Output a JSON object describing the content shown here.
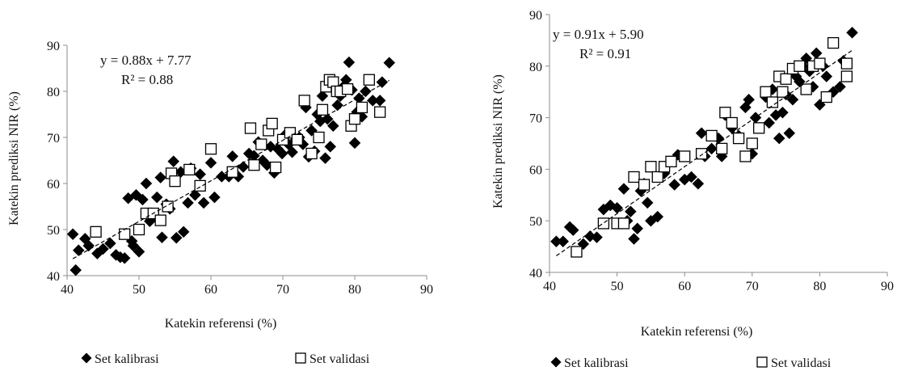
{
  "chart_data": [
    {
      "type": "scatter",
      "xlabel": "Katekin referensi (%)",
      "ylabel": "Katekin prediksi NIR (%)",
      "xlim": [
        40,
        90
      ],
      "ylim": [
        40,
        90
      ],
      "xticks": [
        40,
        50,
        60,
        70,
        80,
        90
      ],
      "yticks": [
        40,
        50,
        60,
        70,
        80,
        90
      ],
      "grid": false,
      "legend_position": "bottom",
      "annotation": {
        "equation": "y = 0.88x + 7.77",
        "r2": "R² = 0.88"
      },
      "trendline": {
        "slope": 0.88,
        "intercept": 7.77,
        "x_range": [
          40.8,
          84.8
        ]
      },
      "series": [
        {
          "name": "Set kalibrasi",
          "marker": "filled-diamond",
          "color": "#000000",
          "points": [
            [
              40.8,
              49
            ],
            [
              41.2,
              41.2
            ],
            [
              41.6,
              45.5
            ],
            [
              42.5,
              48
            ],
            [
              43,
              46.5
            ],
            [
              44.2,
              44.8
            ],
            [
              45,
              45.8
            ],
            [
              46,
              47
            ],
            [
              46.8,
              44.5
            ],
            [
              47.4,
              44
            ],
            [
              48,
              43.8
            ],
            [
              48.5,
              56.8
            ],
            [
              49,
              47.5
            ],
            [
              49.2,
              46.5
            ],
            [
              49.6,
              57.5
            ],
            [
              50,
              45.2
            ],
            [
              50.5,
              56.5
            ],
            [
              51,
              60
            ],
            [
              51.5,
              51.8
            ],
            [
              52,
              53
            ],
            [
              52.5,
              57
            ],
            [
              53,
              61.3
            ],
            [
              53.2,
              48.3
            ],
            [
              53.8,
              55.5
            ],
            [
              54.3,
              54.5
            ],
            [
              54.8,
              64.8
            ],
            [
              55.2,
              48.2
            ],
            [
              55.8,
              62.5
            ],
            [
              56.2,
              49.5
            ],
            [
              56.8,
              55.8
            ],
            [
              57.2,
              63.3
            ],
            [
              57.8,
              57.5
            ],
            [
              58.5,
              62
            ],
            [
              59,
              55.8
            ],
            [
              60,
              64.5
            ],
            [
              60.5,
              57
            ],
            [
              61.5,
              61.5
            ],
            [
              62.5,
              61.5
            ],
            [
              63,
              65.9
            ],
            [
              63.8,
              61.5
            ],
            [
              64.5,
              63.6
            ],
            [
              65.3,
              66.5
            ],
            [
              66,
              66
            ],
            [
              66.6,
              69
            ],
            [
              67.2,
              65
            ],
            [
              67.8,
              64
            ],
            [
              68.3,
              68
            ],
            [
              68.8,
              62.3
            ],
            [
              69.3,
              67.5
            ],
            [
              69.9,
              66.5
            ],
            [
              70.3,
              70.5
            ],
            [
              70.8,
              68.5
            ],
            [
              71.3,
              66.8
            ],
            [
              71.8,
              69.5
            ],
            [
              72.3,
              70
            ],
            [
              72.8,
              68.5
            ],
            [
              73.2,
              76.5
            ],
            [
              73.6,
              65.8
            ],
            [
              74,
              71.5
            ],
            [
              74.4,
              67
            ],
            [
              74.8,
              75
            ],
            [
              75.2,
              73.5
            ],
            [
              75.5,
              79
            ],
            [
              75.9,
              65.5
            ],
            [
              76.2,
              74
            ],
            [
              76.6,
              68
            ],
            [
              77,
              72.5
            ],
            [
              77.3,
              80
            ],
            [
              77.6,
              77
            ],
            [
              78,
              79
            ],
            [
              78.4,
              81
            ],
            [
              78.8,
              82.5
            ],
            [
              79.2,
              86.3
            ],
            [
              79.6,
              80.3
            ],
            [
              80,
              68.8
            ],
            [
              80.3,
              75.5
            ],
            [
              80.6,
              78.5
            ],
            [
              81,
              74.5
            ],
            [
              81.5,
              80
            ],
            [
              82.5,
              78
            ],
            [
              83.5,
              78
            ],
            [
              83.8,
              82
            ],
            [
              84.8,
              86.2
            ]
          ]
        },
        {
          "name": "Set validasi",
          "marker": "open-square",
          "color": "#000000",
          "points": [
            [
              44,
              49.5
            ],
            [
              48,
              49
            ],
            [
              50,
              50
            ],
            [
              51,
              53.5
            ],
            [
              52,
              53.5
            ],
            [
              53,
              52
            ],
            [
              54,
              55
            ],
            [
              54.5,
              62.2
            ],
            [
              55,
              60.5
            ],
            [
              57,
              63
            ],
            [
              58.5,
              59.5
            ],
            [
              60,
              67.5
            ],
            [
              63,
              62.5
            ],
            [
              65.5,
              72
            ],
            [
              66,
              64
            ],
            [
              67,
              68.5
            ],
            [
              68,
              71.5
            ],
            [
              68.5,
              73
            ],
            [
              69,
              63.5
            ],
            [
              70,
              69.5
            ],
            [
              71,
              71
            ],
            [
              72,
              69.5
            ],
            [
              73,
              78
            ],
            [
              74,
              66.5
            ],
            [
              75,
              70
            ],
            [
              75.5,
              76
            ],
            [
              76,
              81
            ],
            [
              76.5,
              82.5
            ],
            [
              77,
              82
            ],
            [
              77.5,
              80
            ],
            [
              78,
              80
            ],
            [
              79,
              80.5
            ],
            [
              79.5,
              72.5
            ],
            [
              80,
              74
            ],
            [
              81,
              76.5
            ],
            [
              82,
              82.5
            ],
            [
              83.5,
              75.5
            ]
          ]
        }
      ]
    },
    {
      "type": "scatter",
      "xlabel": "Katekin referensi (%)",
      "ylabel": "Katekin prediksi NIR (%)",
      "xlim": [
        40,
        90
      ],
      "ylim": [
        40,
        90
      ],
      "xticks": [
        40,
        50,
        60,
        70,
        80,
        90
      ],
      "yticks": [
        40,
        50,
        60,
        70,
        80,
        90
      ],
      "grid": false,
      "legend_position": "bottom",
      "annotation": {
        "equation": "y = 0.91x + 5.90",
        "r2": "R² = 0.91"
      },
      "trendline": {
        "slope": 0.91,
        "intercept": 5.9,
        "x_range": [
          41.0,
          84.8
        ]
      },
      "series": [
        {
          "name": "Set kalibrasi",
          "marker": "filled-diamond",
          "color": "#000000",
          "points": [
            [
              41,
              46
            ],
            [
              42,
              46
            ],
            [
              43,
              48.8
            ],
            [
              43.5,
              48.2
            ],
            [
              45,
              45.5
            ],
            [
              46,
              47
            ],
            [
              47,
              46.8
            ],
            [
              48,
              52.2
            ],
            [
              49,
              53
            ],
            [
              50,
              52.5
            ],
            [
              51,
              56.2
            ],
            [
              51.5,
              50
            ],
            [
              52,
              51.8
            ],
            [
              52.5,
              46.5
            ],
            [
              53,
              48.5
            ],
            [
              53.5,
              55.8
            ],
            [
              54,
              57.2
            ],
            [
              54.5,
              53.5
            ],
            [
              55,
              50
            ],
            [
              56,
              50.8
            ],
            [
              57,
              59.2
            ],
            [
              58,
              61.5
            ],
            [
              58.5,
              57
            ],
            [
              59,
              62.8
            ],
            [
              60,
              58
            ],
            [
              61,
              58.5
            ],
            [
              62,
              57.2
            ],
            [
              62.5,
              67
            ],
            [
              63,
              62.5
            ],
            [
              64,
              64
            ],
            [
              65,
              66
            ],
            [
              65.5,
              62.5
            ],
            [
              66,
              70.5
            ],
            [
              67,
              68
            ],
            [
              68,
              66.5
            ],
            [
              69,
              72
            ],
            [
              69.5,
              73.5
            ],
            [
              70,
              63
            ],
            [
              70.5,
              70
            ],
            [
              71,
              68
            ],
            [
              72,
              74
            ],
            [
              72.5,
              69
            ],
            [
              73,
              75.5
            ],
            [
              73.5,
              70.5
            ],
            [
              74,
              66
            ],
            [
              74.5,
              71
            ],
            [
              75,
              74.5
            ],
            [
              75.5,
              67
            ],
            [
              76,
              73.5
            ],
            [
              76.5,
              78
            ],
            [
              77,
              77
            ],
            [
              77.5,
              80
            ],
            [
              78,
              81.5
            ],
            [
              78.5,
              79
            ],
            [
              79,
              76
            ],
            [
              79.5,
              82.5
            ],
            [
              80,
              72.5
            ],
            [
              80.5,
              80
            ],
            [
              81,
              78
            ],
            [
              82,
              75
            ],
            [
              83,
              76
            ],
            [
              83.5,
              81
            ],
            [
              84.8,
              86.5
            ]
          ]
        },
        {
          "name": "Set validasi",
          "marker": "open-square",
          "color": "#000000",
          "points": [
            [
              44,
              44
            ],
            [
              48,
              49.5
            ],
            [
              50,
              49.5
            ],
            [
              51,
              49.5
            ],
            [
              52.5,
              58.5
            ],
            [
              54,
              57
            ],
            [
              55,
              60.5
            ],
            [
              56,
              58.5
            ],
            [
              57,
              60.5
            ],
            [
              58,
              61.5
            ],
            [
              60,
              62.5
            ],
            [
              62.5,
              63
            ],
            [
              64,
              66.5
            ],
            [
              65.5,
              64
            ],
            [
              66,
              71
            ],
            [
              67,
              69
            ],
            [
              68,
              66
            ],
            [
              69,
              62.5
            ],
            [
              70,
              65
            ],
            [
              71,
              68
            ],
            [
              72,
              75
            ],
            [
              73,
              73
            ],
            [
              74,
              78
            ],
            [
              74.5,
              75
            ],
            [
              75,
              77.5
            ],
            [
              76,
              79.5
            ],
            [
              77,
              80
            ],
            [
              78,
              75.5
            ],
            [
              79,
              80
            ],
            [
              80,
              80.5
            ],
            [
              81,
              74
            ],
            [
              82,
              84.5
            ],
            [
              84,
              78
            ],
            [
              84,
              80.5
            ]
          ]
        }
      ]
    }
  ]
}
